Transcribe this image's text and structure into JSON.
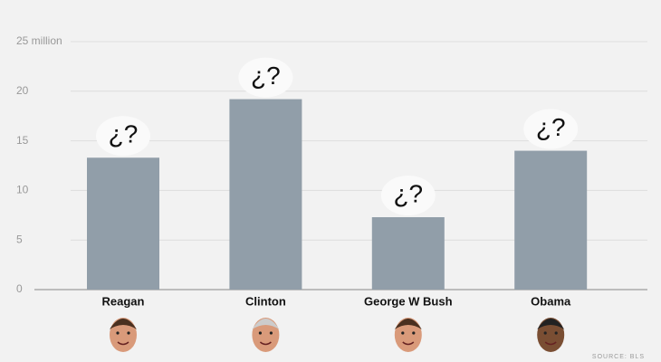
{
  "chart_data": {
    "type": "bar",
    "categories": [
      "Reagan",
      "Clinton",
      "George W Bush",
      "Obama"
    ],
    "values": [
      13.3,
      19.2,
      7.3,
      14.0
    ],
    "annotations": [
      "¿?",
      "¿?",
      "¿?",
      "¿?"
    ],
    "color": "#919ea9",
    "ylim": [
      0,
      25
    ],
    "yticks": [
      0,
      5,
      10,
      15,
      20,
      {
        "value": 25,
        "label": "25 million"
      }
    ],
    "grid": true,
    "source": "SOURCE: BLS"
  }
}
